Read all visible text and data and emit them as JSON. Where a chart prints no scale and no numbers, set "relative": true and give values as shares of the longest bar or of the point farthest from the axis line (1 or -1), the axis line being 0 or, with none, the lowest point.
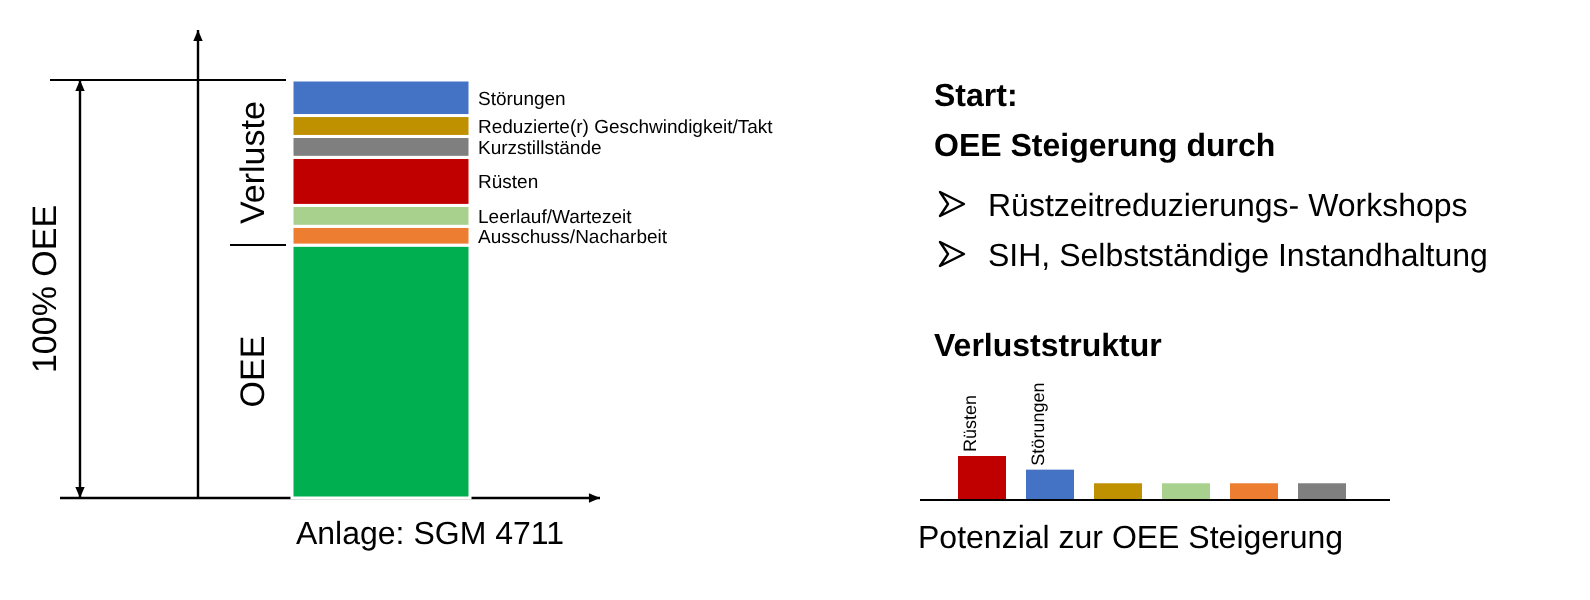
{
  "chart_data": [
    {
      "type": "bar",
      "stacked": true,
      "relative": true,
      "categories": [
        null
      ],
      "xlabel": "Anlage: SGM 4711",
      "annotations": [
        "100% OEE",
        "Verluste"
      ],
      "series": [
        {
          "name": "OEE",
          "color": "#00b050",
          "values": [
            0.605
          ]
        },
        {
          "name": "Ausschuss/Nacharbeit",
          "color": "#ed7d31",
          "values": [
            0.045
          ]
        },
        {
          "name": "Leerlauf/Wartezeit",
          "color": "#a9d18e",
          "values": [
            0.05
          ]
        },
        {
          "name": "Rüsten",
          "color": "#c00000",
          "values": [
            0.115
          ]
        },
        {
          "name": "Kurzstillstände",
          "color": "#7f7f7f",
          "values": [
            0.05
          ]
        },
        {
          "name": "Reduzierte(r) Geschwindigkeit/Takt",
          "color": "#bf9000",
          "values": [
            0.05
          ]
        },
        {
          "name": "Störungen",
          "color": "#4472c4",
          "values": [
            0.085
          ]
        }
      ]
    },
    {
      "type": "bar",
      "relative": true,
      "title": "Verluststruktur",
      "xlabel": "Potenzial zur OEE Steigerung",
      "categories": [
        "Rüsten",
        "Störungen",
        null,
        null,
        null,
        null
      ],
      "colors": [
        "#c00000",
        "#4472c4",
        "#bf9000",
        "#a9d18e",
        "#ed7d31",
        "#7f7f7f"
      ],
      "values": [
        1,
        0.69,
        0.38,
        0.38,
        0.38,
        0.38
      ]
    },
    {
      "type": "other",
      "title": "Start:",
      "subtitle": "OEE Steigerung durch",
      "annotations": [
        "Rüstzeitreduzierungs- Workshops",
        "SIH, Selbstständige Instandhaltung"
      ]
    }
  ]
}
